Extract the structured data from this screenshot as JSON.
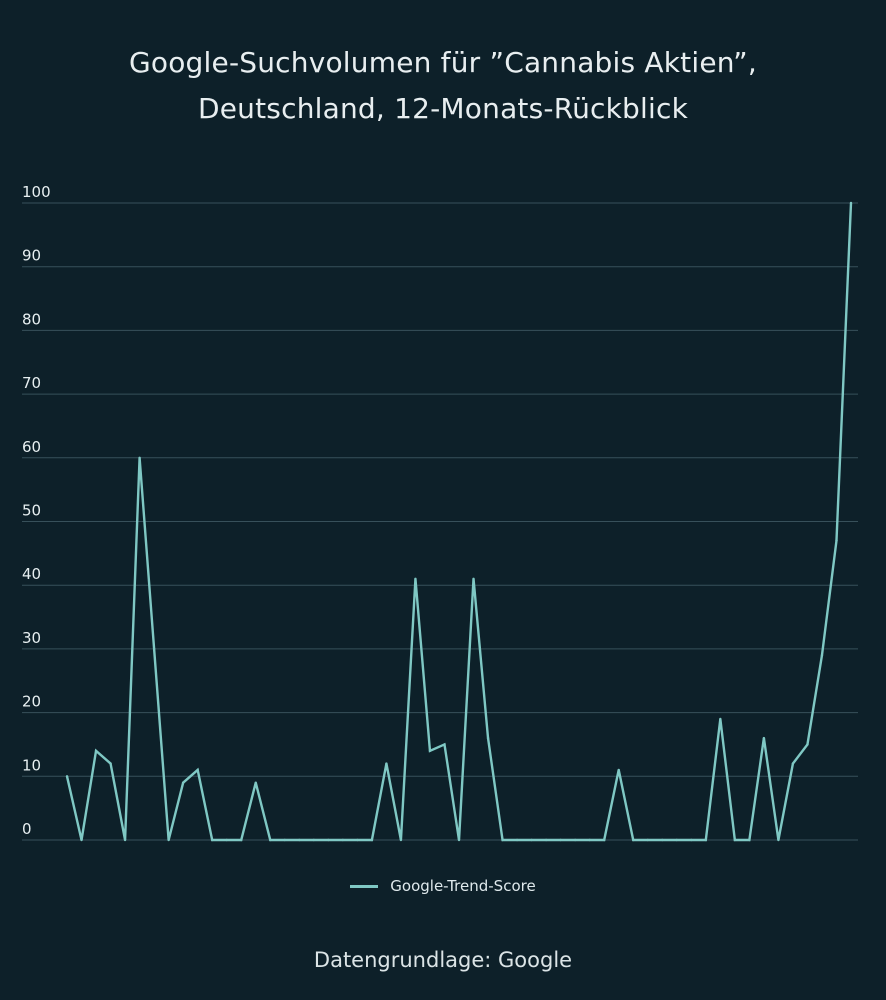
{
  "title_line1": "Google-Suchvolumen für ”Cannabis Aktien”,",
  "title_line2": "Deutschland, 12-Monats-Rückblick",
  "footer": "Datengrundlage: Google",
  "chart_data": {
    "type": "line",
    "title": "Google-Suchvolumen für ”Cannabis Aktien”, Deutschland, 12-Monats-Rückblick",
    "xlabel": "",
    "ylabel": "",
    "ylim": [
      0,
      100
    ],
    "yticks": [
      "0",
      "10",
      "20",
      "30",
      "40",
      "50",
      "60",
      "70",
      "80",
      "90",
      "100"
    ],
    "grid": true,
    "legend_position": "bottom",
    "series": [
      {
        "name": "Google-Trend-Score",
        "color": "#7fc8c4",
        "values": [
          10,
          0,
          14,
          12,
          0,
          60,
          30,
          0,
          9,
          11,
          0,
          0,
          0,
          9,
          0,
          0,
          0,
          0,
          0,
          0,
          0,
          0,
          12,
          0,
          41,
          14,
          15,
          0,
          41,
          16,
          0,
          0,
          0,
          0,
          0,
          0,
          0,
          0,
          11,
          0,
          0,
          0,
          0,
          0,
          0,
          19,
          0,
          0,
          16,
          0,
          12,
          15,
          29,
          47,
          100
        ]
      }
    ]
  }
}
